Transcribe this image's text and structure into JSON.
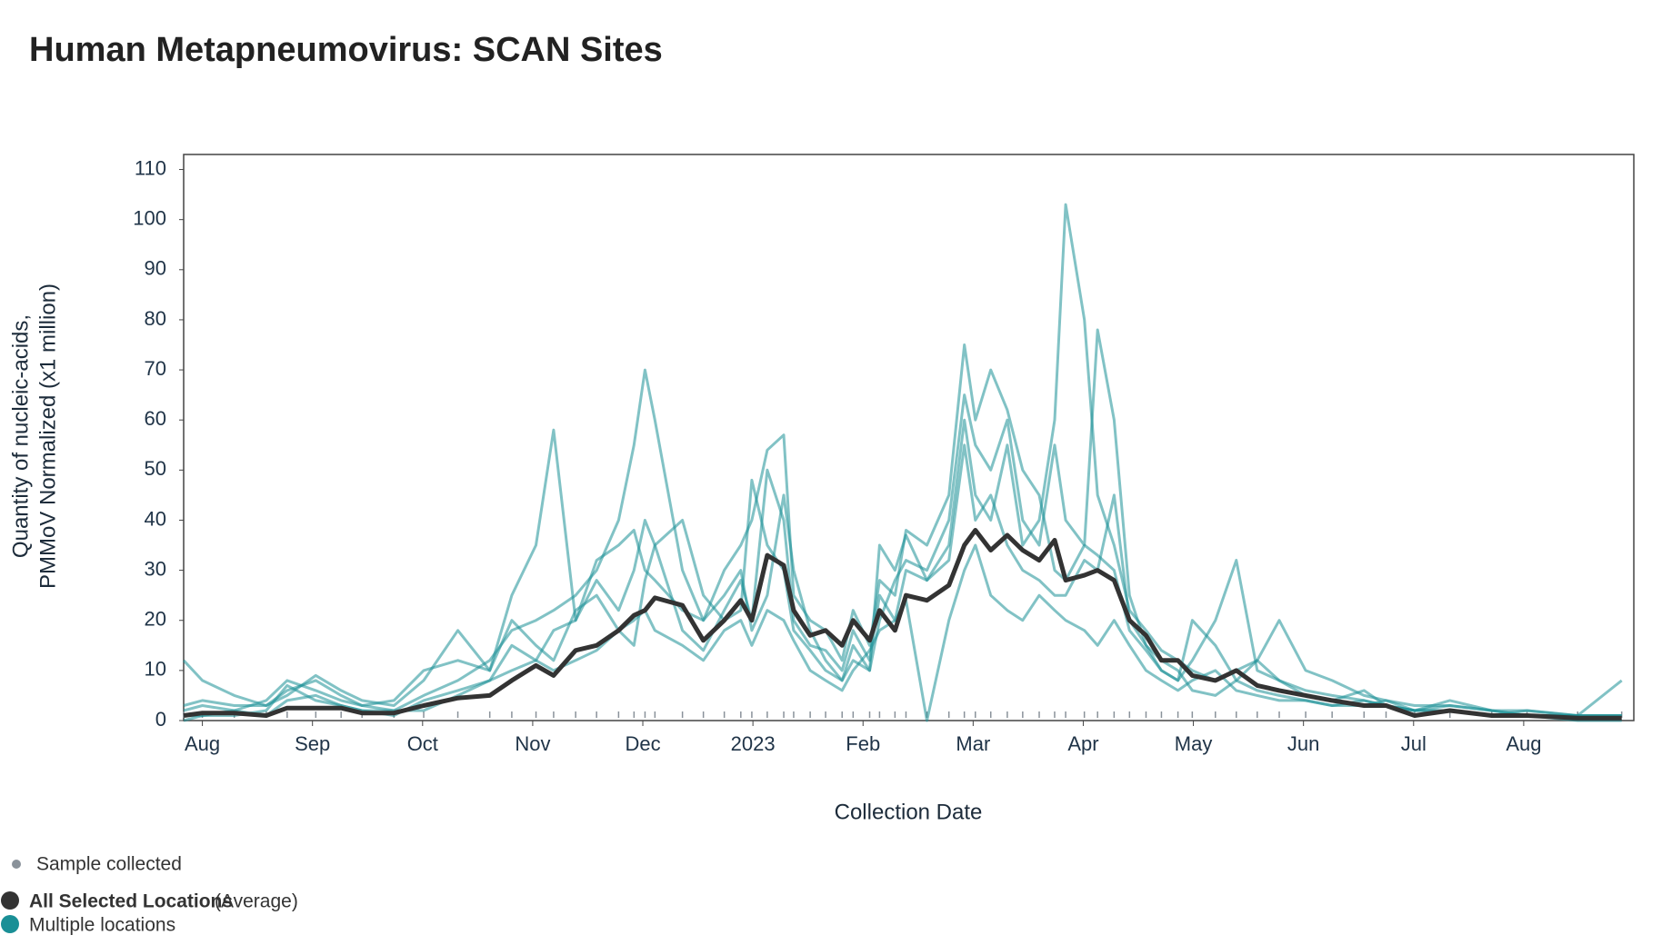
{
  "chart_data": {
    "type": "line",
    "title": "Human Metapneumovirus: SCAN Sites",
    "x_label": "Collection Date",
    "y_label": [
      "Quantity of nucleic-acids,",
      "PMMoV Normalized (x1 million)"
    ],
    "xlim": [
      -0.17,
      13.0
    ],
    "xticks": [
      {
        "value": 0,
        "label": "Aug"
      },
      {
        "value": 1,
        "label": "Sep"
      },
      {
        "value": 2,
        "label": "Oct"
      },
      {
        "value": 3,
        "label": "Nov"
      },
      {
        "value": 4,
        "label": "Dec"
      },
      {
        "value": 5,
        "label": "2023"
      },
      {
        "value": 6,
        "label": "Feb"
      },
      {
        "value": 7,
        "label": "Mar"
      },
      {
        "value": 8,
        "label": "Apr"
      },
      {
        "value": 9,
        "label": "May"
      },
      {
        "value": 10,
        "label": "Jun"
      },
      {
        "value": 11,
        "label": "Jul"
      },
      {
        "value": 12,
        "label": "Aug"
      }
    ],
    "ylim": [
      0,
      113
    ],
    "yticks": [
      0,
      10,
      20,
      30,
      40,
      50,
      60,
      70,
      80,
      90,
      100,
      110
    ],
    "x": [
      -0.17,
      0,
      0.29,
      0.58,
      0.77,
      1.03,
      1.26,
      1.45,
      1.74,
      2.01,
      2.32,
      2.61,
      2.81,
      3.03,
      3.19,
      3.39,
      3.58,
      3.78,
      3.92,
      4.02,
      4.11,
      4.36,
      4.55,
      4.74,
      4.89,
      4.99,
      5.13,
      5.28,
      5.37,
      5.52,
      5.66,
      5.81,
      5.91,
      6.06,
      6.15,
      6.29,
      6.39,
      6.58,
      6.78,
      6.92,
      7.02,
      7.16,
      7.31,
      7.45,
      7.6,
      7.74,
      7.84,
      8.01,
      8.13,
      8.28,
      8.42,
      8.57,
      8.71,
      8.86,
      8.99,
      9.2,
      9.39,
      9.58,
      9.78,
      10.02,
      10.26,
      10.55,
      10.75,
      11.01,
      11.33,
      11.71,
      12.03,
      12.49,
      12.89
    ],
    "samples_label": "Sample collected",
    "samples_color": "#8a929a",
    "locations": {
      "name": "Multiple locations",
      "color": "#1a8f96",
      "series": [
        [
          12,
          8,
          5,
          3,
          6,
          8,
          5,
          3,
          4,
          10,
          12,
          10,
          25,
          35,
          58,
          20,
          28,
          22,
          30,
          40,
          35,
          18,
          14,
          22,
          28,
          20,
          50,
          40,
          20,
          15,
          14,
          10,
          18,
          12,
          25,
          20,
          30,
          28,
          35,
          60,
          45,
          40,
          55,
          35,
          40,
          60,
          103,
          80,
          45,
          35,
          22,
          18,
          14,
          12,
          10,
          8,
          10,
          12,
          8,
          6,
          5,
          4,
          3,
          2,
          3,
          2,
          1,
          1,
          8
        ],
        [
          2,
          3,
          2,
          4,
          8,
          6,
          4,
          3,
          2,
          5,
          8,
          12,
          18,
          20,
          22,
          25,
          30,
          40,
          55,
          70,
          60,
          30,
          20,
          25,
          30,
          18,
          25,
          45,
          30,
          18,
          12,
          8,
          15,
          10,
          20,
          28,
          32,
          30,
          40,
          65,
          55,
          50,
          60,
          40,
          35,
          55,
          40,
          35,
          78,
          60,
          25,
          15,
          12,
          10,
          6,
          5,
          8,
          6,
          5,
          4,
          3,
          4,
          3,
          2,
          2,
          1,
          2,
          1,
          1
        ],
        [
          0,
          1,
          1,
          2,
          7,
          4,
          3,
          2,
          1,
          4,
          6,
          8,
          15,
          12,
          18,
          20,
          32,
          35,
          38,
          30,
          28,
          22,
          20,
          30,
          35,
          40,
          54,
          57,
          25,
          20,
          18,
          12,
          22,
          15,
          28,
          25,
          38,
          35,
          45,
          75,
          60,
          70,
          62,
          50,
          45,
          30,
          28,
          35,
          33,
          30,
          18,
          14,
          10,
          8,
          12,
          20,
          32,
          10,
          8,
          5,
          4,
          6,
          3,
          2,
          4,
          2,
          2,
          1,
          1
        ],
        [
          3,
          4,
          3,
          3,
          5,
          9,
          6,
          4,
          3,
          8,
          18,
          10,
          20,
          15,
          12,
          22,
          25,
          18,
          15,
          28,
          35,
          40,
          25,
          20,
          22,
          48,
          35,
          30,
          18,
          14,
          10,
          8,
          12,
          10,
          35,
          30,
          37,
          28,
          32,
          55,
          40,
          45,
          35,
          30,
          28,
          25,
          25,
          32,
          30,
          45,
          20,
          15,
          10,
          8,
          20,
          15,
          8,
          12,
          20,
          10,
          8,
          5,
          4,
          3,
          3,
          2,
          1,
          1,
          1
        ],
        [
          1,
          1,
          2,
          1,
          4,
          5,
          3,
          2,
          2,
          2,
          5,
          8,
          10,
          12,
          10,
          12,
          14,
          18,
          20,
          22,
          18,
          15,
          12,
          18,
          20,
          15,
          22,
          20,
          16,
          10,
          8,
          6,
          10,
          14,
          18,
          20,
          24,
          0,
          20,
          30,
          35,
          25,
          22,
          20,
          25,
          22,
          20,
          18,
          15,
          20,
          15,
          10,
          8,
          6,
          8,
          10,
          6,
          5,
          4,
          4,
          3,
          3,
          4,
          2,
          2,
          1,
          1,
          0,
          0
        ]
      ]
    },
    "average": {
      "name": "All Selected Locations",
      "note": "(Average)",
      "color": "#333333",
      "values": [
        1,
        1.5,
        1.5,
        1,
        2.5,
        2.5,
        2.5,
        1.5,
        1.5,
        3,
        4.5,
        5,
        8,
        11,
        9,
        14,
        15,
        18,
        21,
        22,
        24.5,
        23,
        16,
        20,
        24,
        20,
        33,
        31,
        22,
        17,
        18,
        15,
        20,
        16,
        22,
        18,
        25,
        24,
        27,
        35,
        38,
        34,
        37,
        34,
        32,
        36,
        28,
        29,
        30,
        28,
        20,
        17,
        12,
        12,
        9,
        8,
        10,
        7,
        6,
        5,
        4,
        3,
        3,
        1,
        2,
        1,
        1,
        0.5,
        0.5
      ]
    }
  }
}
